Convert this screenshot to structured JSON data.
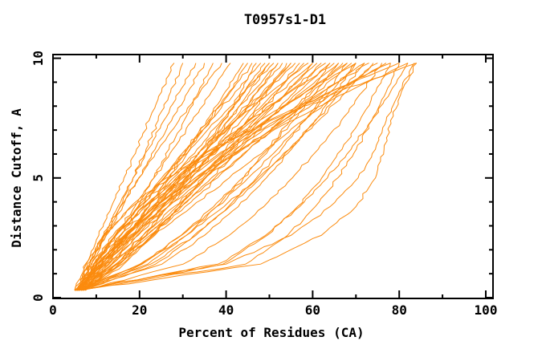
{
  "window": {
    "background": "#ffffff"
  },
  "chart_data": {
    "type": "line",
    "title": "T0957s1-D1",
    "xlabel": "Percent of Residues (CA)",
    "ylabel": "Distance Cutoff, A",
    "xlim": [
      0,
      102
    ],
    "ylim": [
      0,
      10.25
    ],
    "grid": false,
    "legend": "none",
    "frame": {
      "mirrored_inward_ticks": true,
      "stroke_color": "#000000"
    },
    "x_major_ticks": [
      0,
      20,
      40,
      60,
      80,
      100
    ],
    "x_minor_ticks": [
      10,
      30,
      50,
      70,
      90
    ],
    "y_major_ticks": [
      0,
      5,
      10
    ],
    "y_minor_ticks": [
      1,
      2,
      3,
      4,
      6,
      7,
      8,
      9
    ],
    "series_color": "#FB8B0E",
    "series_description": "Each curve is one predicted model: percent of CA residues (x) under a distance cutoff (y, Angstroms)",
    "cutoffs": [
      0.3,
      1.4,
      2.6,
      3.8,
      5.0,
      6.2,
      7.4,
      8.6,
      9.8
    ],
    "curves": [
      [
        5,
        7.7,
        10.6,
        13.5,
        16.4,
        19.3,
        22.2,
        25.1,
        28
      ],
      [
        5.5,
        9,
        12.3,
        15.5,
        18.5,
        21.5,
        24.3,
        27.2,
        30
      ],
      [
        6,
        8.5,
        11.7,
        15,
        18.5,
        22,
        25.6,
        29.3,
        33
      ],
      [
        5,
        8.5,
        12.3,
        16.1,
        19.8,
        23.6,
        27.4,
        31.2,
        35
      ],
      [
        6.5,
        11.4,
        15.6,
        19.6,
        23.3,
        26.8,
        30.3,
        33.7,
        37
      ],
      [
        5.5,
        8,
        11.6,
        15.6,
        19.9,
        24.4,
        29.1,
        34,
        39
      ],
      [
        6,
        10.1,
        14.5,
        18.9,
        23.3,
        27.7,
        32.2,
        36.6,
        41
      ],
      [
        7,
        12.3,
        17.3,
        22.1,
        26.6,
        31.1,
        35.5,
        39.8,
        44
      ],
      [
        5,
        11.4,
        17,
        22.1,
        27,
        31.7,
        36.2,
        40.7,
        45
      ],
      [
        6,
        10.6,
        15.7,
        20.7,
        25.8,
        30.8,
        35.9,
        41,
        46
      ],
      [
        6.5,
        15.5,
        21.5,
        26.6,
        31.2,
        35.5,
        39.5,
        43.4,
        47
      ],
      [
        5.5,
        9.5,
        14.4,
        19.7,
        25.1,
        30.7,
        36.4,
        42.1,
        48
      ],
      [
        7,
        13,
        18.7,
        24.1,
        29.3,
        34.3,
        39.3,
        44.2,
        49
      ],
      [
        6,
        11.1,
        16.7,
        22.2,
        27.8,
        33.3,
        38.9,
        44.4,
        50
      ],
      [
        5,
        13.5,
        19.4,
        25.3,
        30.7,
        35.7,
        40.6,
        45.4,
        50
      ],
      [
        6.5,
        9.9,
        14.6,
        19.9,
        25.6,
        31.6,
        37.9,
        44.3,
        51
      ],
      [
        7.5,
        14.6,
        20.8,
        26.5,
        32,
        37.2,
        42.3,
        47.2,
        52
      ],
      [
        6,
        11.3,
        17.1,
        22.9,
        28.8,
        34.6,
        40.4,
        46.2,
        52
      ],
      [
        5.5,
        11.7,
        17.8,
        23.9,
        29.9,
        35.7,
        41.5,
        47.3,
        53
      ],
      [
        7,
        16.4,
        23.2,
        29.2,
        34.7,
        39.9,
        44.8,
        49.4,
        54
      ],
      [
        6,
        11.1,
        17,
        23.2,
        29.5,
        35.7,
        42.1,
        48.5,
        55
      ],
      [
        5,
        12.2,
        18.9,
        25.4,
        31.6,
        37.6,
        43.5,
        49.3,
        55
      ],
      [
        7.5,
        11.6,
        17,
        22.9,
        29.1,
        35.5,
        42.2,
        49,
        56
      ],
      [
        6.5,
        16,
        22.7,
        29.2,
        35.3,
        41,
        46.5,
        51.8,
        57
      ],
      [
        6,
        12,
        18.6,
        25.2,
        31.7,
        38.3,
        44.9,
        51.4,
        58
      ],
      [
        5.5,
        8.8,
        13.9,
        20.1,
        27,
        34.3,
        42.1,
        50.4,
        59
      ],
      [
        7,
        14.6,
        21.7,
        28.6,
        35.1,
        41.5,
        47.8,
        54,
        60
      ],
      [
        6,
        11,
        17.3,
        24,
        30.9,
        38,
        45.2,
        52.5,
        60
      ],
      [
        6.5,
        12.8,
        19.7,
        26.6,
        33.5,
        40.4,
        47.2,
        54.1,
        61
      ],
      [
        5.5,
        14.5,
        22.4,
        29.7,
        36.6,
        43.2,
        49.6,
        55.9,
        62
      ],
      [
        6,
        10.3,
        16.4,
        23.2,
        30.5,
        38.2,
        46.2,
        54.5,
        63
      ],
      [
        7,
        13.6,
        20.8,
        28,
        35.2,
        42.4,
        49.6,
        56.8,
        64
      ],
      [
        6.5,
        9.4,
        14.5,
        20.9,
        28.4,
        36.5,
        45.4,
        54.9,
        65
      ],
      [
        5.5,
        11.2,
        18.2,
        25.6,
        33.5,
        41.3,
        49.4,
        57.7,
        66
      ],
      [
        7.5,
        15.2,
        22.9,
        30.5,
        38,
        45.3,
        52.6,
        59.9,
        67
      ],
      [
        6,
        10.2,
        16.5,
        23.8,
        31.7,
        40.2,
        49.1,
        58.4,
        68
      ],
      [
        6.5,
        13.7,
        21.6,
        29.5,
        37.4,
        45.3,
        53.2,
        61.1,
        69
      ],
      [
        7,
        9.5,
        14.5,
        21.1,
        28.9,
        37.8,
        47.7,
        58.5,
        70
      ],
      [
        5.5,
        11.1,
        18.5,
        26.6,
        35.1,
        43.9,
        53.1,
        62.4,
        72
      ],
      [
        6,
        10.1,
        16.6,
        24.3,
        32.9,
        42.1,
        51.9,
        62.2,
        73
      ],
      [
        7,
        14.9,
        23.5,
        32.1,
        40.7,
        49.2,
        57.8,
        66.4,
        75
      ],
      [
        6.5,
        10.3,
        16.8,
        24.8,
        33.8,
        43.5,
        54,
        65.2,
        77
      ],
      [
        6,
        21.9,
        30.8,
        37.8,
        44,
        49.6,
        54.7,
        59.5,
        64
      ],
      [
        5.5,
        20.4,
        29.6,
        37.1,
        43.8,
        49.9,
        55.6,
        60.9,
        66
      ],
      [
        7,
        23.7,
        33,
        40.5,
        47,
        52.8,
        58.2,
        63.2,
        68
      ],
      [
        6,
        20.1,
        29.7,
        37.8,
        45.1,
        51.9,
        58.2,
        64.2,
        70
      ],
      [
        6.5,
        22.6,
        32.6,
        40.8,
        48,
        54.6,
        60.7,
        66.5,
        72
      ],
      [
        5.5,
        20.6,
        30.8,
        39.5,
        47.4,
        54.6,
        61.4,
        67.8,
        74
      ],
      [
        5,
        39.3,
        49.5,
        56.5,
        62.1,
        66.8,
        70.9,
        74.6,
        78
      ],
      [
        5.5,
        44.5,
        54.2,
        60.6,
        65.8,
        70.1,
        73.7,
        77,
        80
      ],
      [
        6,
        38.1,
        49.1,
        57,
        63.4,
        68.9,
        73.6,
        78,
        82
      ],
      [
        5,
        40,
        55,
        64,
        70.5,
        74.5,
        77,
        80,
        83.5
      ],
      [
        6.5,
        30.1,
        40.7,
        48.7,
        55.3,
        61.3,
        66.6,
        71.5,
        76
      ],
      [
        5.5,
        25.2,
        35,
        42.8,
        49.3,
        55.1,
        60.5,
        65.4,
        70
      ],
      [
        5.5,
        48,
        62,
        70,
        74.5,
        76.5,
        78,
        80.5,
        84
      ],
      [
        7,
        9.3,
        14.3,
        21.4,
        30,
        40.2,
        51.5,
        64.2,
        78
      ],
      [
        6,
        7.5,
        11.8,
        18.3,
        26.9,
        37.4,
        49.8,
        64,
        80
      ],
      [
        6.5,
        9.5,
        15.5,
        23.4,
        32.8,
        43.4,
        55.3,
        68.2,
        82
      ],
      [
        7.5,
        8.5,
        12,
        17.9,
        26.2,
        37,
        50.3,
        65.9,
        84
      ]
    ]
  }
}
